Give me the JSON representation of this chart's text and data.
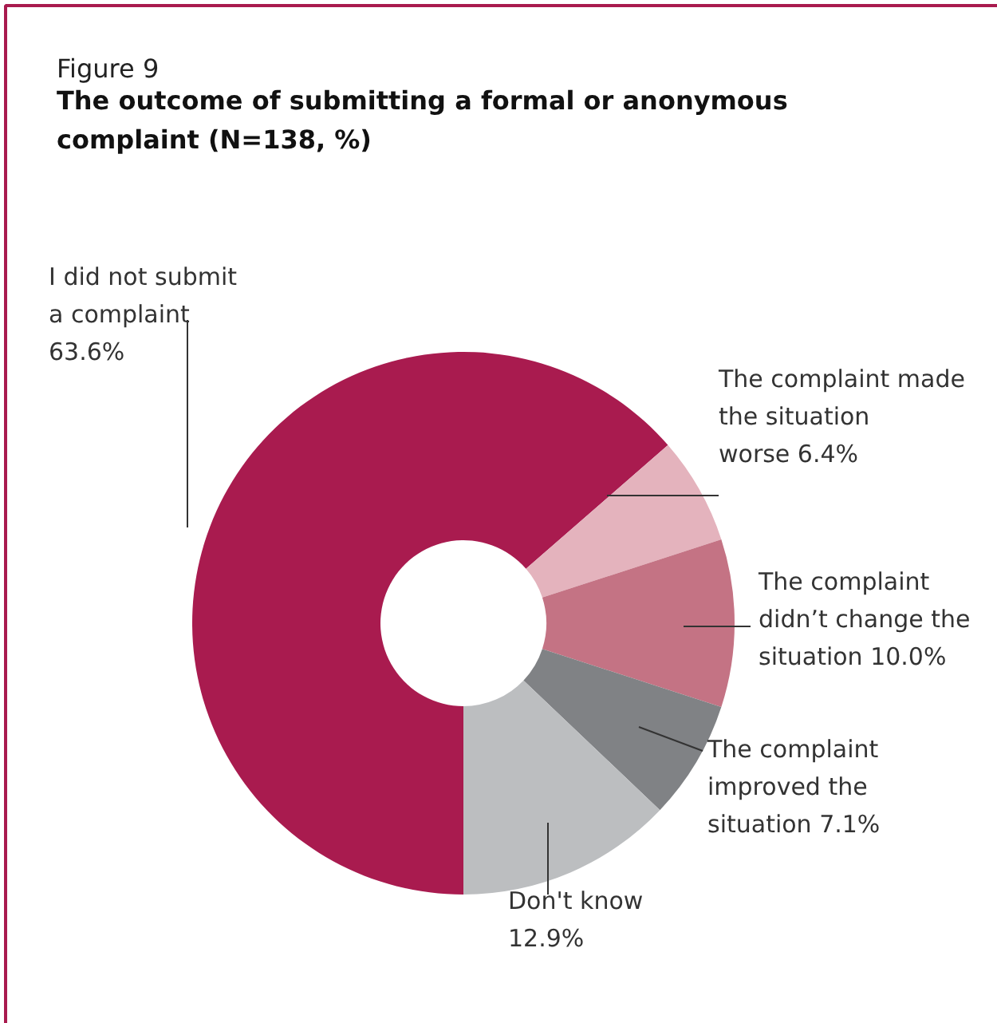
{
  "chart_data": {
    "type": "donut",
    "subtitle": "Figure 9",
    "title": "The outcome of submitting a formal or anonymous complaint (N=138, %)",
    "categories": [
      "I did not submit a complaint",
      "The complaint made the situation worse",
      "The complaint didn’t change the situation",
      "The complaint improved the situation",
      "Don't know"
    ],
    "values": [
      63.6,
      6.4,
      10.0,
      7.1,
      12.9
    ],
    "colors": [
      "#a91b4f",
      "#e4b3bd",
      "#c47384",
      "#808285",
      "#bcbec0"
    ],
    "value_labels": [
      "63.6%",
      "6.4%",
      "10.0%",
      "7.1%",
      "12.9%"
    ]
  }
}
